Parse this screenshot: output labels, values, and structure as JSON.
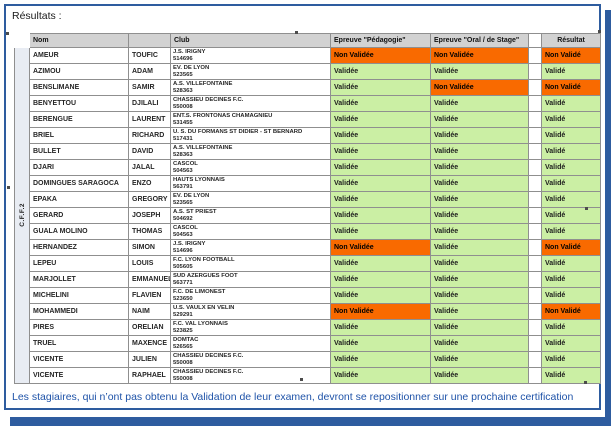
{
  "page": {
    "results_label": "Résultats :",
    "footer_note": "Les stagiaires, qui n’ont pas obtenu la Validation de leur examen, devront se repositionner sur une prochaine certification"
  },
  "colors": {
    "frame_blue": "#2e5c9f",
    "note_blue": "#1f53a8",
    "header_bg": "#d2d2d2",
    "group_bg": "#e8ecf3",
    "valid_bg": "#cbefa4",
    "invalid_bg": "#f96a00"
  },
  "table": {
    "group_label": "C.F.F.2",
    "headers": {
      "nom": "Nom",
      "prenom": "",
      "club": "Club",
      "pedagogie": "Epreuve \"Pédagogie\"",
      "oral": "Epreuve \"Oral / de Stage\"",
      "resultat": "Résultat"
    },
    "rows": [
      {
        "last_name": "AMEUR",
        "first_name": "TOUFIC",
        "club": "J.S. IRIGNY",
        "club_id": "514696",
        "pedagogie": "Non Validée",
        "oral": "Non Validée",
        "resultat": "Non Validé"
      },
      {
        "last_name": "AZIMOU",
        "first_name": "ADAM",
        "club": "EV. DE LYON",
        "club_id": "523565",
        "pedagogie": "Validée",
        "oral": "Validée",
        "resultat": "Validé"
      },
      {
        "last_name": "BENSLIMANE",
        "first_name": "SAMIR",
        "club": "A.S. VILLEFONTAINE",
        "club_id": "528363",
        "pedagogie": "Validée",
        "oral": "Non Validée",
        "resultat": "Non Validé"
      },
      {
        "last_name": "BENYETTOU",
        "first_name": "DJILALI",
        "club": "CHASSIEU DECINES F.C.",
        "club_id": "550008",
        "pedagogie": "Validée",
        "oral": "Validée",
        "resultat": "Validé"
      },
      {
        "last_name": "BERENGUE",
        "first_name": "LAURENT",
        "club": "ENT.S. FRONTONAS CHAMAGNIEU",
        "club_id": "531455",
        "pedagogie": "Validée",
        "oral": "Validée",
        "resultat": "Validé"
      },
      {
        "last_name": "BRIEL",
        "first_name": "RICHARD",
        "club": "U. S. DU FORMANS ST DIDIER - ST BERNARD",
        "club_id": "517431",
        "pedagogie": "Validée",
        "oral": "Validée",
        "resultat": "Validé"
      },
      {
        "last_name": "BULLET",
        "first_name": "DAVID",
        "club": "A.S. VILLEFONTAINE",
        "club_id": "528363",
        "pedagogie": "Validée",
        "oral": "Validée",
        "resultat": "Validé"
      },
      {
        "last_name": "DJARI",
        "first_name": "JALAL",
        "club": "CASCOL",
        "club_id": "504563",
        "pedagogie": "Validée",
        "oral": "Validée",
        "resultat": "Validé"
      },
      {
        "last_name": "DOMINGUES SARAGOCA",
        "first_name": "ENZO",
        "club": "HAUTS LYONNAIS",
        "club_id": "563791",
        "pedagogie": "Validée",
        "oral": "Validée",
        "resultat": "Validé"
      },
      {
        "last_name": "EPAKA",
        "first_name": "GREGORY",
        "club": "EV. DE LYON",
        "club_id": "523565",
        "pedagogie": "Validée",
        "oral": "Validée",
        "resultat": "Validé"
      },
      {
        "last_name": "GERARD",
        "first_name": "JOSEPH",
        "club": "A.S. ST PRIEST",
        "club_id": "504692",
        "pedagogie": "Validée",
        "oral": "Validée",
        "resultat": "Validé"
      },
      {
        "last_name": "GUALA MOLINO",
        "first_name": "THOMAS",
        "club": "CASCOL",
        "club_id": "504563",
        "pedagogie": "Validée",
        "oral": "Validée",
        "resultat": "Validé"
      },
      {
        "last_name": "HERNANDEZ",
        "first_name": "SIMON",
        "club": "J.S. IRIGNY",
        "club_id": "514696",
        "pedagogie": "Non Validée",
        "oral": "Validée",
        "resultat": "Non Validé"
      },
      {
        "last_name": "LEPEU",
        "first_name": "LOUIS",
        "club": "F.C. LYON FOOTBALL",
        "club_id": "505605",
        "pedagogie": "Validée",
        "oral": "Validée",
        "resultat": "Validé"
      },
      {
        "last_name": "MARJOLLET",
        "first_name": "EMMANUEL",
        "club": "SUD AZERGUES FOOT",
        "club_id": "563771",
        "pedagogie": "Validée",
        "oral": "Validée",
        "resultat": "Validé"
      },
      {
        "last_name": "MICHELINI",
        "first_name": "FLAVIEN",
        "club": "F.C. DE LIMONEST",
        "club_id": "523650",
        "pedagogie": "Validée",
        "oral": "Validée",
        "resultat": "Validé"
      },
      {
        "last_name": "MOHAMMEDI",
        "first_name": "NAIM",
        "club": "U.S. VAULX EN VELIN",
        "club_id": "529291",
        "pedagogie": "Non Validée",
        "oral": "Validée",
        "resultat": "Non Validé"
      },
      {
        "last_name": "PIRES",
        "first_name": "ORELIAN",
        "club": "F.C. VAL LYONNAIS",
        "club_id": "523825",
        "pedagogie": "Validée",
        "oral": "Validée",
        "resultat": "Validé"
      },
      {
        "last_name": "TRUEL",
        "first_name": "MAXENCE",
        "club": "DOMTAC",
        "club_id": "526565",
        "pedagogie": "Validée",
        "oral": "Validée",
        "resultat": "Validé"
      },
      {
        "last_name": "VICENTE",
        "first_name": "JULIEN",
        "club": "CHASSIEU DECINES F.C.",
        "club_id": "550008",
        "pedagogie": "Validée",
        "oral": "Validée",
        "resultat": "Validé"
      },
      {
        "last_name": "VICENTE",
        "first_name": "RAPHAEL",
        "club": "CHASSIEU DECINES F.C.",
        "club_id": "550008",
        "pedagogie": "Validée",
        "oral": "Validée",
        "resultat": "Validé"
      }
    ]
  }
}
